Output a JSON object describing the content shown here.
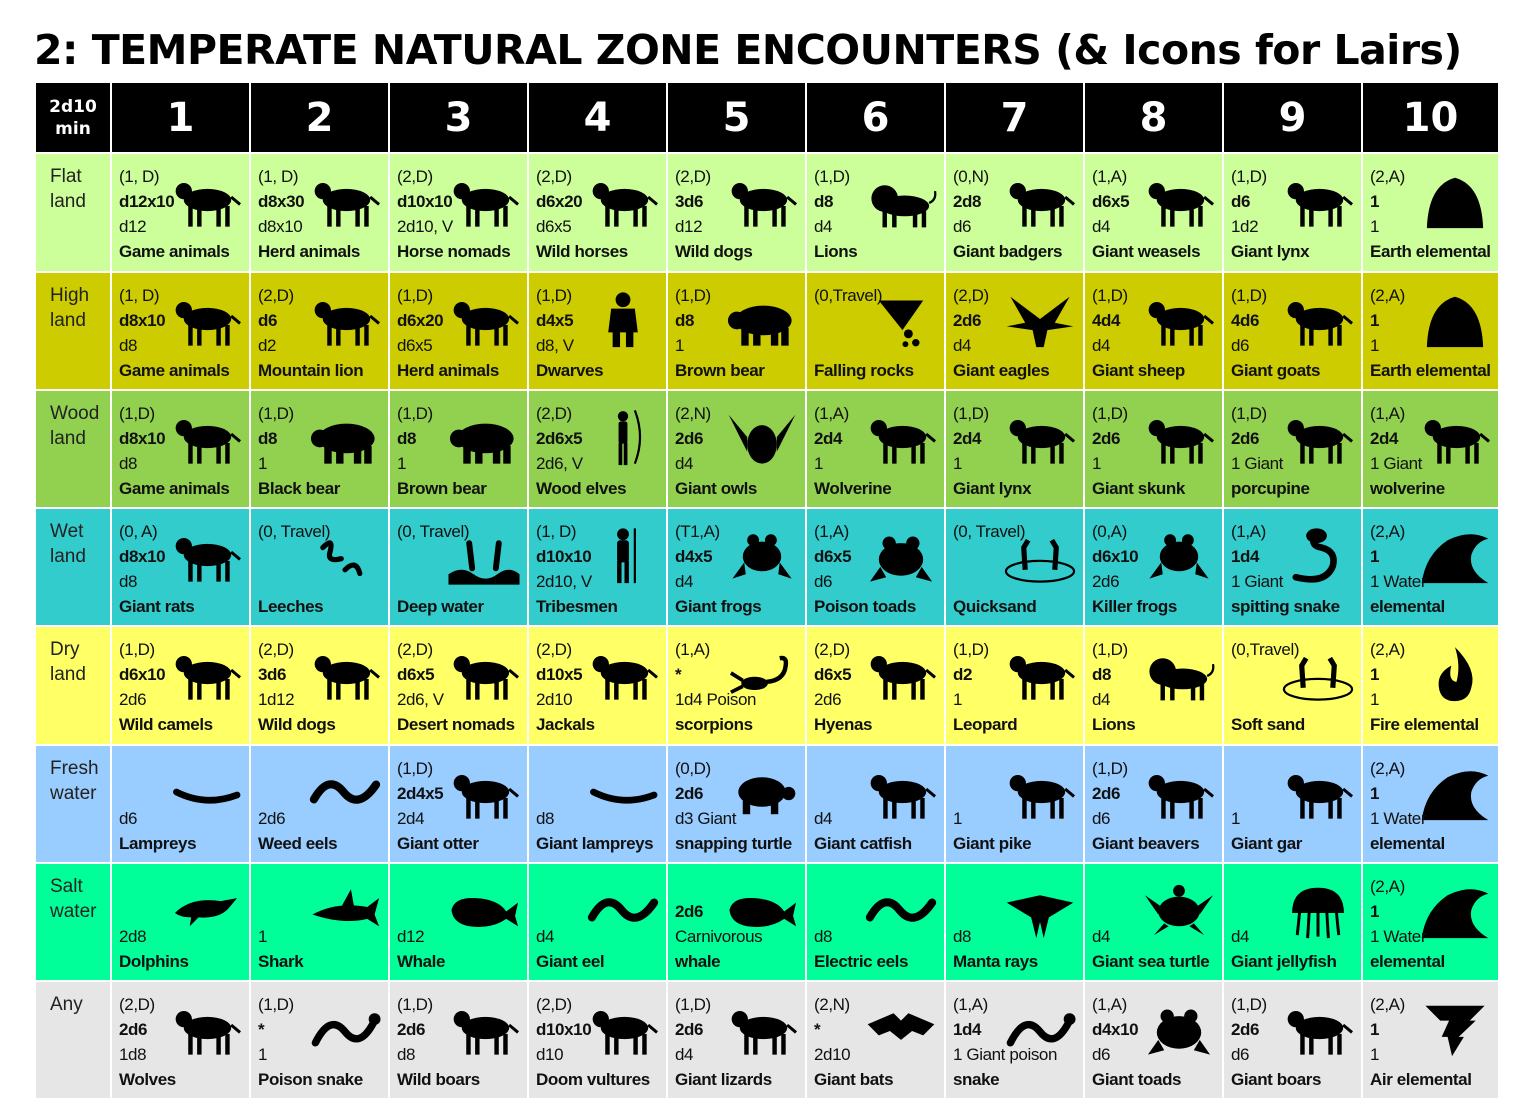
{
  "title": "2: TEMPERATE NATURAL ZONE ENCOUNTERS (& Icons for Lairs)",
  "header": {
    "corner_top": "2d10",
    "corner_bottom": "min",
    "columns": [
      "1",
      "2",
      "3",
      "4",
      "5",
      "6",
      "7",
      "8",
      "9",
      "10"
    ]
  },
  "rows": [
    {
      "label": [
        "Flat",
        "land"
      ],
      "color": "#ccff99",
      "cells": [
        {
          "lines": [
            "(1, D)",
            "d12x10",
            "d12",
            "Game animals"
          ],
          "icon": "antelope-icon"
        },
        {
          "lines": [
            "(1, D)",
            "d8x30",
            "d8x10",
            "Herd animals"
          ],
          "icon": "cow-icon"
        },
        {
          "lines": [
            "(2,D)",
            "d10x10",
            "2d10, V",
            "Horse nomads"
          ],
          "icon": "horse-rider-icon"
        },
        {
          "lines": [
            "(2,D)",
            "d6x20",
            "d6x5",
            "Wild horses"
          ],
          "icon": "horse-icon"
        },
        {
          "lines": [
            "(2,D)",
            "3d6",
            "d12",
            "Wild dogs"
          ],
          "icon": "dog-icon"
        },
        {
          "lines": [
            "(1,D)",
            "d8",
            "d4",
            "Lions"
          ],
          "icon": "lion-icon"
        },
        {
          "lines": [
            "(0,N)",
            "2d8",
            "d6",
            "Giant badgers"
          ],
          "icon": "badger-icon"
        },
        {
          "lines": [
            "(1,A)",
            "d6x5",
            "d4",
            "Giant weasels"
          ],
          "icon": "weasel-icon"
        },
        {
          "lines": [
            "(1,D)",
            "d6",
            "1d2",
            "Giant lynx"
          ],
          "icon": "lynx-icon"
        },
        {
          "lines": [
            "(2,A)",
            "1",
            "1",
            "Earth elemental"
          ],
          "icon": "earth-elemental-icon"
        }
      ]
    },
    {
      "label": [
        "High",
        "land"
      ],
      "color": "#cccc00",
      "cells": [
        {
          "lines": [
            "(1, D)",
            "d8x10",
            "d8",
            "Game animals"
          ],
          "icon": "ibex-icon"
        },
        {
          "lines": [
            "(2,D)",
            "d6",
            "d2",
            "Mountain lion"
          ],
          "icon": "mountain-lion-icon"
        },
        {
          "lines": [
            "(1,D)",
            "d6x20",
            "d6x5",
            "Herd animals"
          ],
          "icon": "goat-icon"
        },
        {
          "lines": [
            "(1,D)",
            "d4x5",
            "d8, V",
            "Dwarves"
          ],
          "icon": "dwarf-icon"
        },
        {
          "lines": [
            "(1,D)",
            "d8",
            "1",
            "Brown bear"
          ],
          "icon": "bear-icon"
        },
        {
          "lines": [
            "(0,Travel)",
            "",
            "",
            "Falling rocks"
          ],
          "icon": "falling-rocks-icon"
        },
        {
          "lines": [
            "(2,D)",
            "2d6",
            "d4",
            "Giant eagles"
          ],
          "icon": "eagle-icon"
        },
        {
          "lines": [
            "(1,D)",
            "4d4",
            "d4",
            "Giant sheep"
          ],
          "icon": "ram-icon"
        },
        {
          "lines": [
            "(1,D)",
            "4d6",
            "d6",
            "Giant goats"
          ],
          "icon": "goat-icon"
        },
        {
          "lines": [
            "(2,A)",
            "1",
            "1",
            "Earth elemental"
          ],
          "icon": "earth-elemental-icon"
        }
      ]
    },
    {
      "label": [
        "Wood",
        "land"
      ],
      "color": "#92d050",
      "cells": [
        {
          "lines": [
            "(1,D)",
            "d8x10",
            "d8",
            "Game animals"
          ],
          "icon": "deer-icon"
        },
        {
          "lines": [
            "(1,D)",
            "d8",
            "1",
            "Black bear"
          ],
          "icon": "bear-icon"
        },
        {
          "lines": [
            "(1,D)",
            "d8",
            "1",
            "Brown bear"
          ],
          "icon": "bear-icon"
        },
        {
          "lines": [
            "(2,D)",
            "2d6x5",
            "2d6, V",
            "Wood elves"
          ],
          "icon": "elf-archer-icon"
        },
        {
          "lines": [
            "(2,N)",
            "2d6",
            "d4",
            "Giant owls"
          ],
          "icon": "owl-icon"
        },
        {
          "lines": [
            "(1,A)",
            "2d4",
            "1",
            "Wolverine"
          ],
          "icon": "wolverine-icon"
        },
        {
          "lines": [
            "(1,D)",
            "2d4",
            "1",
            "Giant lynx"
          ],
          "icon": "lynx-icon"
        },
        {
          "lines": [
            "(1,D)",
            "2d6",
            "1",
            "Giant skunk"
          ],
          "icon": "skunk-icon"
        },
        {
          "lines": [
            "(1,D)",
            "2d6",
            "1  Giant",
            "porcupine"
          ],
          "icon": "porcupine-icon"
        },
        {
          "lines": [
            "(1,A)",
            "2d4",
            "1 Giant",
            "wolverine"
          ],
          "icon": "wolverine-icon"
        }
      ]
    },
    {
      "label": [
        "Wet",
        "land"
      ],
      "color": "#33cccc",
      "cells": [
        {
          "lines": [
            "(0, A)",
            "d8x10",
            "d8",
            "Giant rats"
          ],
          "icon": "rat-icon"
        },
        {
          "lines": [
            "(0, Travel)",
            "",
            "",
            "Leeches"
          ],
          "icon": "leech-icon"
        },
        {
          "lines": [
            "(0, Travel)",
            "",
            "",
            "Deep water"
          ],
          "icon": "drowning-icon"
        },
        {
          "lines": [
            "(1, D)",
            "d10x10",
            "2d10, V",
            "Tribesmen"
          ],
          "icon": "tribesman-icon"
        },
        {
          "lines": [
            "(T1,A)",
            "d4x5",
            "d4",
            "Giant frogs"
          ],
          "icon": "frog-icon"
        },
        {
          "lines": [
            "(1,A)",
            "d6x5",
            "d6",
            "Poison toads"
          ],
          "icon": "toad-icon"
        },
        {
          "lines": [
            "(0, Travel)",
            "",
            "",
            "Quicksand"
          ],
          "icon": "quicksand-icon"
        },
        {
          "lines": [
            "(0,A)",
            "d6x10",
            "2d6",
            "Killer frogs"
          ],
          "icon": "frog-icon"
        },
        {
          "lines": [
            "(1,A)",
            "1d4",
            "1 Giant",
            "spitting snake"
          ],
          "icon": "cobra-icon"
        },
        {
          "lines": [
            "(2,A)",
            "1",
            "1 Water",
            "elemental"
          ],
          "icon": "wave-icon"
        }
      ]
    },
    {
      "label": [
        "Dry",
        "land"
      ],
      "color": "#ffff66",
      "cells": [
        {
          "lines": [
            "(1,D)",
            "d6x10",
            "2d6",
            "Wild camels"
          ],
          "icon": "camel-icon"
        },
        {
          "lines": [
            "(2,D)",
            "3d6",
            "1d12",
            "Wild dogs"
          ],
          "icon": "dog-icon"
        },
        {
          "lines": [
            "(2,D)",
            "d6x5",
            "2d6, V",
            "Desert nomads"
          ],
          "icon": "camel-rider-icon"
        },
        {
          "lines": [
            "(2,D)",
            "d10x5",
            "2d10",
            "Jackals"
          ],
          "icon": "jackal-icon"
        },
        {
          "lines": [
            "(1,A)",
            "*",
            "1d4 Poison",
            "scorpions"
          ],
          "icon": "scorpion-icon"
        },
        {
          "lines": [
            "(2,D)",
            "d6x5",
            "2d6",
            "Hyenas"
          ],
          "icon": "hyena-icon"
        },
        {
          "lines": [
            "(1,D)",
            "d2",
            "1",
            "Leopard"
          ],
          "icon": "leopard-icon"
        },
        {
          "lines": [
            "(1,D)",
            "d8",
            "d4",
            "Lions"
          ],
          "icon": "lion-icon"
        },
        {
          "lines": [
            "(0,Travel)",
            "",
            "",
            "Soft sand"
          ],
          "icon": "quicksand-icon"
        },
        {
          "lines": [
            "(2,A)",
            "1",
            "1",
            "Fire elemental"
          ],
          "icon": "fire-icon"
        }
      ]
    },
    {
      "label": [
        "Fresh",
        "water"
      ],
      "color": "#99ccff",
      "cells": [
        {
          "lines": [
            "",
            "",
            "d6",
            "Lampreys"
          ],
          "icon": "lamprey-icon"
        },
        {
          "lines": [
            "",
            "",
            "2d6",
            "Weed eels"
          ],
          "icon": "eel-icon"
        },
        {
          "lines": [
            "(1,D)",
            "2d4x5",
            "2d4",
            "Giant otter"
          ],
          "icon": "otter-icon"
        },
        {
          "lines": [
            "",
            "",
            "d8",
            "Giant lampreys"
          ],
          "icon": "lamprey-icon"
        },
        {
          "lines": [
            "(0,D)",
            "2d6",
            "d3 Giant",
            "snapping turtle"
          ],
          "icon": "turtle-icon"
        },
        {
          "lines": [
            "",
            "",
            "d4",
            "Giant catfish"
          ],
          "icon": "catfish-icon"
        },
        {
          "lines": [
            "",
            "",
            "1",
            "Giant pike"
          ],
          "icon": "pike-icon"
        },
        {
          "lines": [
            "(1,D)",
            "2d6",
            "d6",
            "Giant beavers"
          ],
          "icon": "beaver-icon"
        },
        {
          "lines": [
            "",
            "",
            "1",
            "Giant gar"
          ],
          "icon": "gar-icon"
        },
        {
          "lines": [
            "(2,A)",
            "1",
            "1 Water",
            "elemental"
          ],
          "icon": "wave-icon"
        }
      ]
    },
    {
      "label": [
        "Salt",
        "water"
      ],
      "color": "#00ff99",
      "cells": [
        {
          "lines": [
            "",
            "",
            "2d8",
            "Dolphins"
          ],
          "icon": "dolphin-icon"
        },
        {
          "lines": [
            "",
            "",
            "1",
            "Shark"
          ],
          "icon": "shark-icon"
        },
        {
          "lines": [
            "",
            "",
            "d12",
            "Whale"
          ],
          "icon": "whale-icon"
        },
        {
          "lines": [
            "",
            "",
            "d4",
            "Giant eel"
          ],
          "icon": "eel-icon"
        },
        {
          "lines": [
            "",
            "2d6",
            "Carnivorous",
            "whale"
          ],
          "icon": "whale-icon"
        },
        {
          "lines": [
            "",
            "",
            "d8",
            "Electric eels"
          ],
          "icon": "eel-icon"
        },
        {
          "lines": [
            "",
            "",
            "d8",
            "Manta rays"
          ],
          "icon": "manta-ray-icon"
        },
        {
          "lines": [
            "",
            "",
            "d4",
            "Giant sea turtle"
          ],
          "icon": "sea-turtle-icon"
        },
        {
          "lines": [
            "",
            "",
            "d4",
            "Giant jellyfish"
          ],
          "icon": "jellyfish-icon"
        },
        {
          "lines": [
            "(2,A)",
            "1",
            "1 Water",
            "elemental"
          ],
          "icon": "wave-icon"
        }
      ]
    },
    {
      "label": [
        "Any",
        ""
      ],
      "color": "#e6e6e6",
      "cells": [
        {
          "lines": [
            "(2,D)",
            "2d6",
            "1d8",
            "Wolves"
          ],
          "icon": "wolf-icon"
        },
        {
          "lines": [
            "(1,D)",
            "*",
            "1",
            "Poison snake"
          ],
          "icon": "snake-icon"
        },
        {
          "lines": [
            "(1,D)",
            "2d6",
            "d8",
            "Wild boars"
          ],
          "icon": "boar-icon"
        },
        {
          "lines": [
            "(2,D)",
            "d10x10",
            "d10",
            "Doom vultures"
          ],
          "icon": "vulture-icon"
        },
        {
          "lines": [
            "(1,D)",
            "2d6",
            "d4",
            "Giant lizards"
          ],
          "icon": "lizard-icon"
        },
        {
          "lines": [
            "(2,N)",
            "*",
            "2d10",
            "Giant bats"
          ],
          "icon": "bat-icon"
        },
        {
          "lines": [
            "(1,A)",
            "1d4",
            "1 Giant poison",
            "snake"
          ],
          "icon": "snake-icon"
        },
        {
          "lines": [
            "(1,A)",
            "d4x10",
            "d6",
            "Giant toads"
          ],
          "icon": "toad-icon"
        },
        {
          "lines": [
            "(1,D)",
            "2d6",
            "d6",
            "Giant boars"
          ],
          "icon": "boar-icon"
        },
        {
          "lines": [
            "(2,A)",
            "1",
            "1",
            "Air elemental"
          ],
          "icon": "tornado-icon"
        }
      ]
    }
  ]
}
